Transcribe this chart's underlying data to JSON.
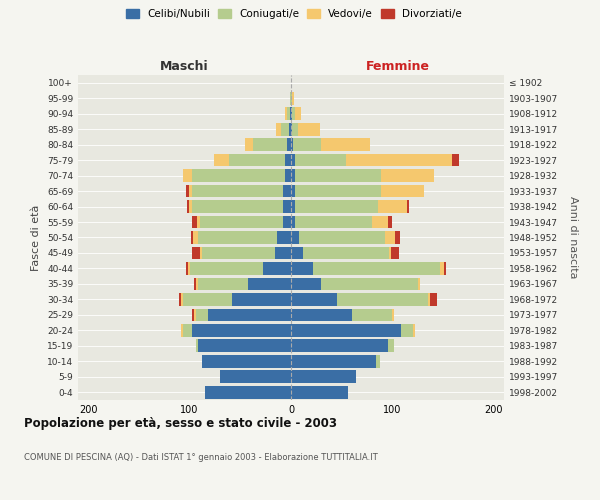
{
  "age_groups": [
    "0-4",
    "5-9",
    "10-14",
    "15-19",
    "20-24",
    "25-29",
    "30-34",
    "35-39",
    "40-44",
    "45-49",
    "50-54",
    "55-59",
    "60-64",
    "65-69",
    "70-74",
    "75-79",
    "80-84",
    "85-89",
    "90-94",
    "95-99",
    "100+"
  ],
  "birth_years": [
    "1998-2002",
    "1993-1997",
    "1988-1992",
    "1983-1987",
    "1978-1982",
    "1973-1977",
    "1968-1972",
    "1963-1967",
    "1958-1962",
    "1953-1957",
    "1948-1952",
    "1943-1947",
    "1938-1942",
    "1933-1937",
    "1928-1932",
    "1923-1927",
    "1918-1922",
    "1913-1917",
    "1908-1912",
    "1903-1907",
    "≤ 1902"
  ],
  "male_celibi": [
    85,
    70,
    88,
    92,
    98,
    82,
    58,
    42,
    28,
    16,
    14,
    8,
    8,
    8,
    6,
    6,
    4,
    2,
    1,
    0,
    0
  ],
  "male_coniugati": [
    0,
    0,
    0,
    2,
    8,
    12,
    48,
    50,
    72,
    72,
    78,
    82,
    90,
    90,
    92,
    55,
    33,
    8,
    3,
    1,
    0
  ],
  "male_vedovi": [
    0,
    0,
    0,
    0,
    2,
    2,
    2,
    2,
    2,
    2,
    5,
    3,
    3,
    3,
    8,
    15,
    8,
    5,
    2,
    0,
    0
  ],
  "male_divorziati": [
    0,
    0,
    0,
    0,
    0,
    2,
    2,
    2,
    2,
    8,
    2,
    5,
    2,
    3,
    0,
    0,
    0,
    0,
    0,
    0,
    0
  ],
  "fem_nubili": [
    56,
    64,
    84,
    96,
    108,
    60,
    45,
    30,
    22,
    12,
    8,
    4,
    4,
    4,
    4,
    4,
    2,
    1,
    1,
    0,
    0
  ],
  "fem_coniugate": [
    0,
    0,
    4,
    6,
    12,
    40,
    90,
    95,
    125,
    85,
    85,
    76,
    82,
    85,
    85,
    50,
    28,
    6,
    3,
    1,
    0
  ],
  "fem_vedove": [
    0,
    0,
    0,
    0,
    2,
    2,
    2,
    2,
    4,
    2,
    10,
    16,
    28,
    42,
    52,
    105,
    48,
    22,
    6,
    2,
    0
  ],
  "fem_divorziate": [
    0,
    0,
    0,
    0,
    0,
    0,
    7,
    0,
    2,
    7,
    4,
    4,
    2,
    0,
    0,
    7,
    0,
    0,
    0,
    0,
    0
  ],
  "colors": {
    "celibi_nubili": "#3a6ea5",
    "coniugati": "#b5cc8e",
    "vedovi": "#f5c86e",
    "divorziati": "#c0392b"
  },
  "title": "Popolazione per età, sesso e stato civile - 2003",
  "subtitle": "COMUNE DI PESCINA (AQ) - Dati ISTAT 1° gennaio 2003 - Elaborazione TUTTITALIA.IT",
  "label_maschi": "Maschi",
  "label_femmine": "Femmine",
  "ylabel_left": "Fasce di età",
  "ylabel_right": "Anni di nascita",
  "legend_labels": [
    "Celibi/Nubili",
    "Coniugati/e",
    "Vedovi/e",
    "Divorziati/e"
  ],
  "xlim": 210,
  "bg_color": "#f5f5f0",
  "plot_bg": "#e8e8e0"
}
